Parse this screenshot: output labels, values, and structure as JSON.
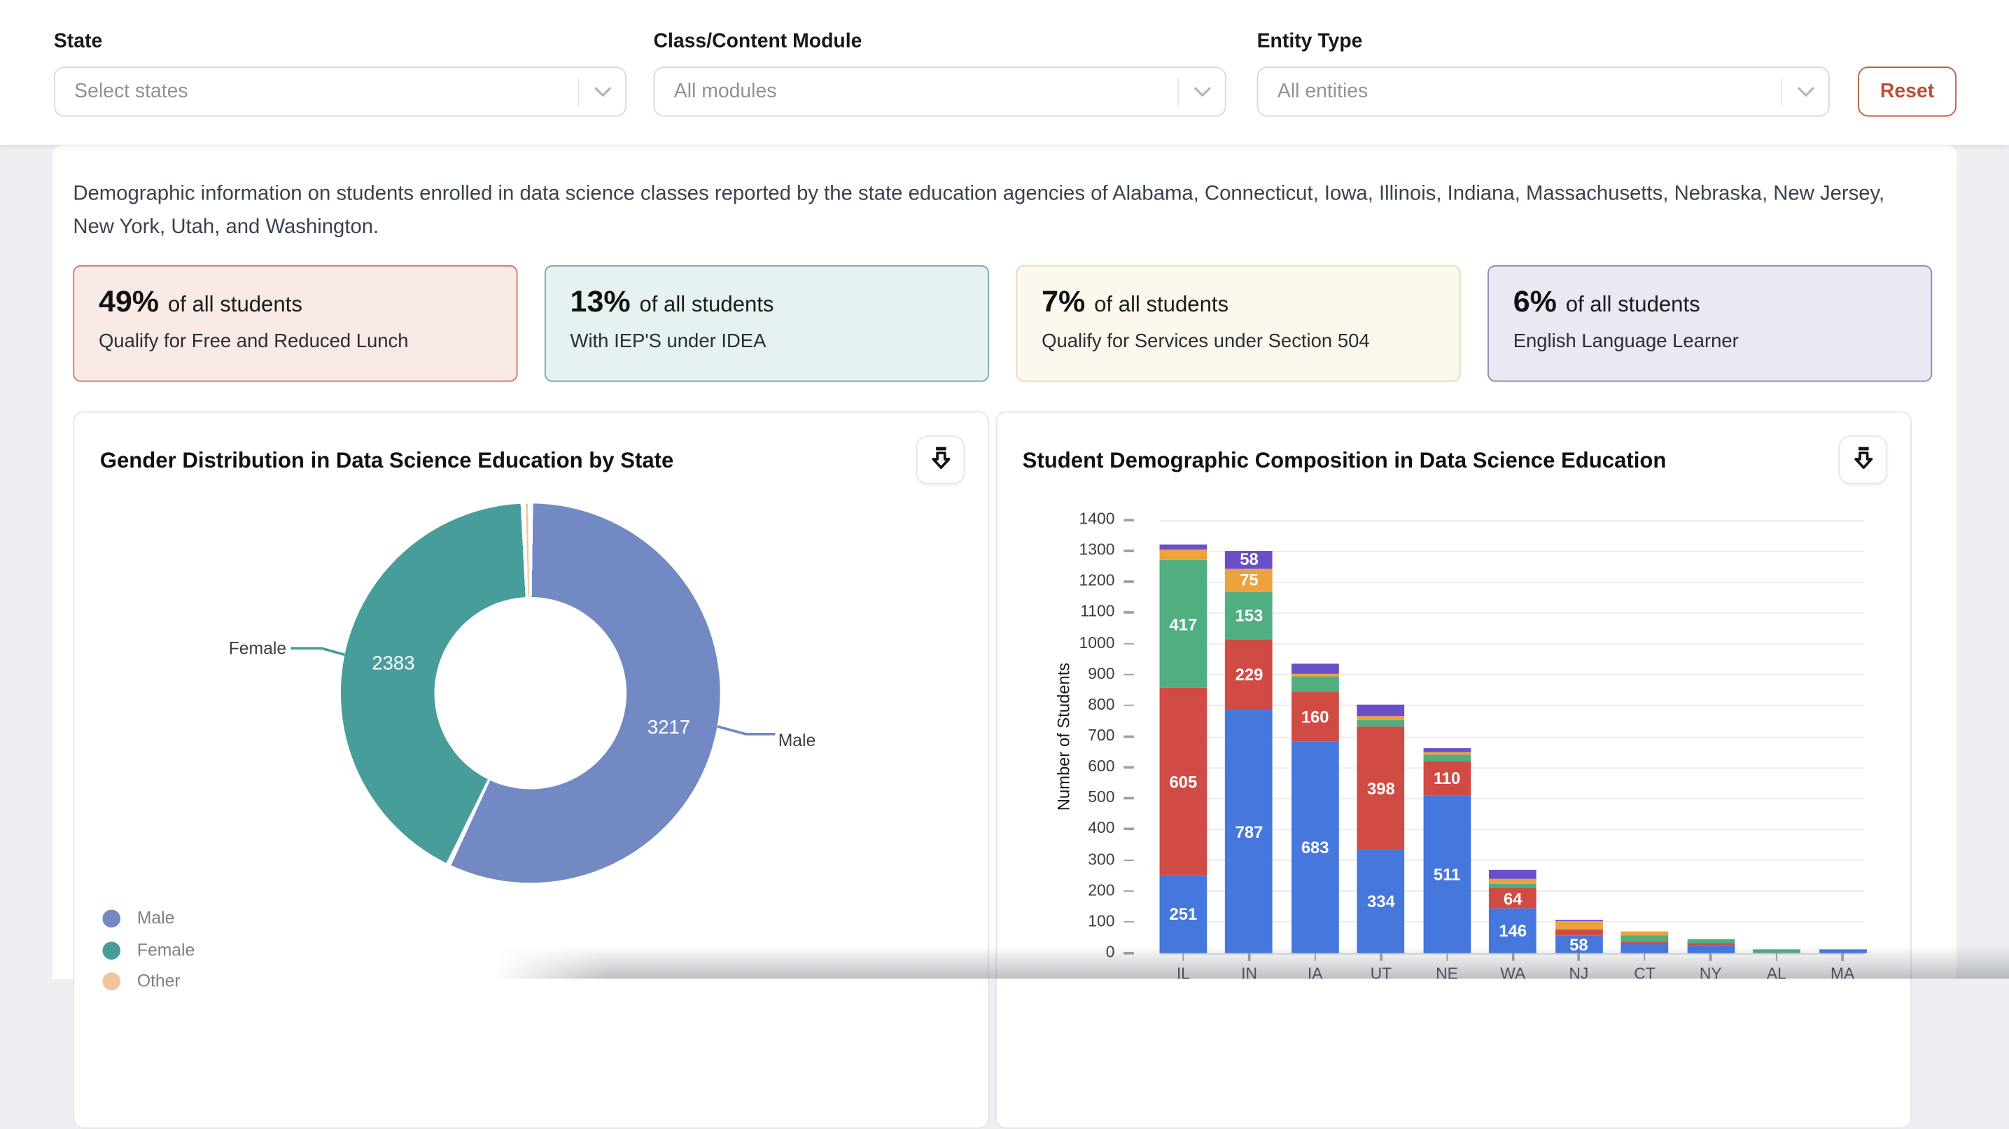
{
  "filters": {
    "state": {
      "label": "State",
      "placeholder": "Select states"
    },
    "module": {
      "label": "Class/Content Module",
      "placeholder": "All modules"
    },
    "entity": {
      "label": "Entity Type",
      "placeholder": "All entities"
    },
    "reset_label": "Reset"
  },
  "description": "Demographic information on students enrolled in data science classes reported by the state education agencies of Alabama, Connecticut, Iowa, Illinois, Indiana, Massachusetts, Nebraska, New Jersey, New York, Utah, and Washington.",
  "stat_cards": [
    {
      "value": "49%",
      "suffix": "of all students",
      "caption": "Qualify for Free and Reduced Lunch",
      "bg": "#faeae5",
      "border": "#c97b63"
    },
    {
      "value": "13%",
      "suffix": "of all students",
      "caption": "With IEP'S under IDEA",
      "bg": "#e6f1f1",
      "border": "#74a7a9"
    },
    {
      "value": "7%",
      "suffix": "of all students",
      "caption": "Qualify for Services under Section 504",
      "bg": "#fdf8ee",
      "border": "#e7d9b4"
    },
    {
      "value": "6%",
      "suffix": "of all students",
      "caption": "English Language Learner",
      "bg": "#e9e8f3",
      "border": "#8d89aa"
    }
  ],
  "chart_data": [
    {
      "type": "donut",
      "title": "Gender Distribution in Data Science Education by State",
      "slices": [
        {
          "label": "Male",
          "value": 3217,
          "color": "#7289c4"
        },
        {
          "label": "Female",
          "value": 2383,
          "color": "#479d9a"
        },
        {
          "label": "Other",
          "value": null,
          "color": "#f2c49b"
        }
      ],
      "legend": [
        "Male",
        "Female",
        "Other"
      ],
      "legend_position": "bottom-left"
    },
    {
      "type": "stacked-bar",
      "title": "Student Demographic Composition in Data Science Education",
      "ylabel": "Number of Students",
      "ylim": [
        0,
        1400
      ],
      "ytick_step": 100,
      "grid": true,
      "label_threshold": 55,
      "categories": [
        "IL",
        "IN",
        "IA",
        "UT",
        "NE",
        "WA",
        "NJ",
        "CT",
        "NY",
        "AL",
        "MA"
      ],
      "series": [
        {
          "name": "blue",
          "color": "#4677dd",
          "values": [
            251,
            787,
            683,
            334,
            511,
            146,
            58,
            28,
            26,
            0,
            13
          ]
        },
        {
          "name": "red",
          "color": "#d14b45",
          "values": [
            605,
            229,
            160,
            398,
            110,
            64,
            17,
            8,
            7,
            0,
            0
          ]
        },
        {
          "name": "green",
          "color": "#50ae80",
          "values": [
            417,
            153,
            50,
            22,
            20,
            15,
            3,
            24,
            11,
            14,
            0
          ]
        },
        {
          "name": "orange",
          "color": "#eca23d",
          "values": [
            30,
            75,
            12,
            14,
            10,
            15,
            24,
            11,
            0,
            0,
            0
          ]
        },
        {
          "name": "purple",
          "color": "#6a4fc8",
          "values": [
            20,
            58,
            30,
            35,
            12,
            30,
            5,
            0,
            0,
            0,
            0
          ]
        }
      ]
    }
  ]
}
